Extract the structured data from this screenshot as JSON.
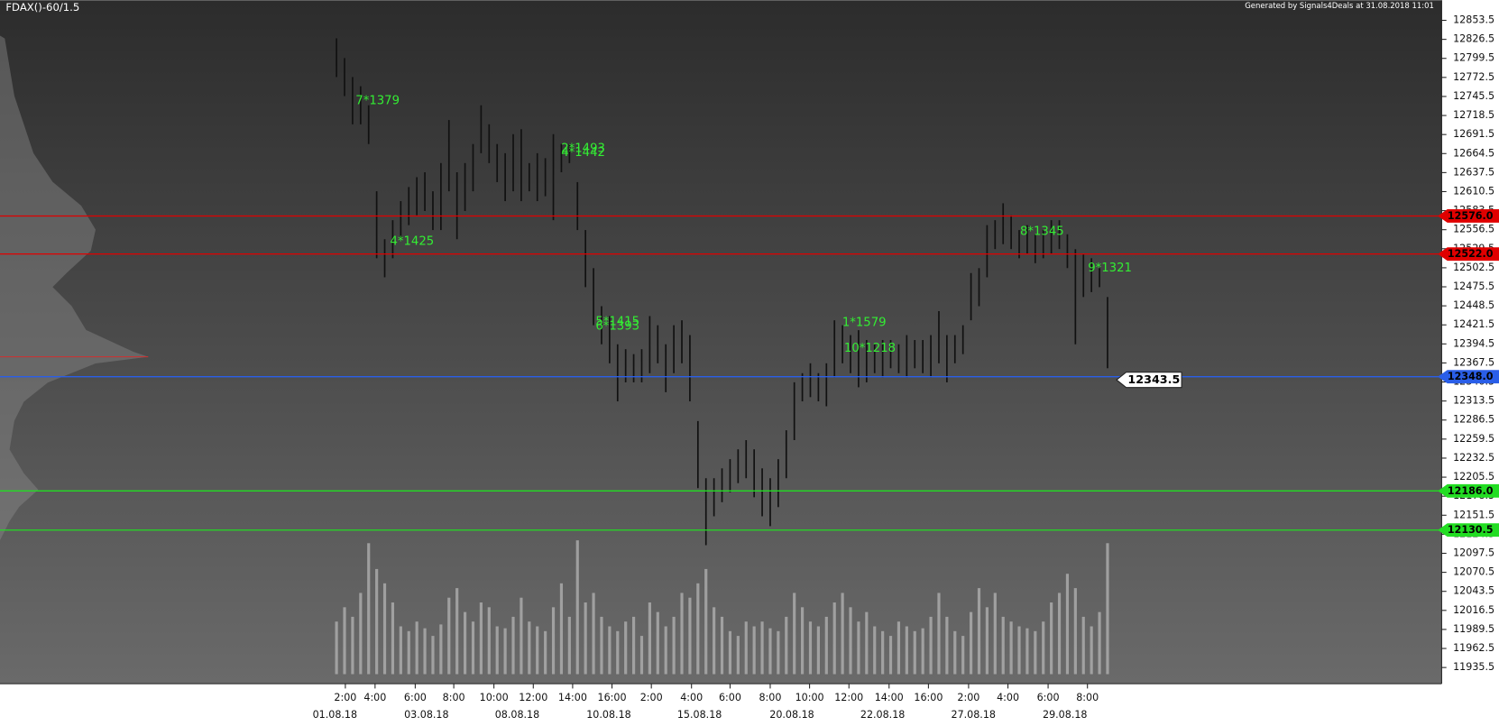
{
  "chart_data": {
    "type": "hilo",
    "title": "FDAX()-60/1.5",
    "subtitle": "Generated by Signals4Deals at 31.08.2018 11:01",
    "color": "#111111",
    "high": [
      12828,
      12800,
      12773,
      12760,
      12733,
      12611,
      12543,
      12570,
      12597,
      12617,
      12631,
      12638,
      12611,
      12651,
      12712,
      12638,
      12651,
      12678,
      12733,
      12706,
      12678,
      12665,
      12692,
      12699,
      12651,
      12665,
      12658,
      12692,
      12678,
      12678,
      12624,
      12556,
      12502,
      12448,
      12434,
      12394,
      12387,
      12380,
      12387,
      12434,
      12421,
      12394,
      12421,
      12428,
      12407,
      12285,
      12204,
      12204,
      12218,
      12231,
      12245,
      12258,
      12245,
      12218,
      12204,
      12231,
      12272,
      12340,
      12353,
      12367,
      12353,
      12367,
      12428,
      12421,
      12407,
      12414,
      12400,
      12394,
      12400,
      12400,
      12394,
      12407,
      12400,
      12400,
      12407,
      12441,
      12407,
      12407,
      12421,
      12495,
      12502,
      12563,
      12570,
      12594,
      12577,
      12556,
      12563,
      12550,
      12556,
      12570,
      12570,
      12550,
      12529,
      12522,
      12516,
      12502,
      12461
    ],
    "low": [
      12773,
      12746,
      12706,
      12706,
      12678,
      12516,
      12489,
      12516,
      12543,
      12563,
      12577,
      12583,
      12556,
      12556,
      12611,
      12543,
      12583,
      12611,
      12665,
      12651,
      12624,
      12597,
      12611,
      12597,
      12611,
      12597,
      12604,
      12570,
      12638,
      12651,
      12556,
      12475,
      12421,
      12394,
      12367,
      12313,
      12340,
      12340,
      12340,
      12353,
      12367,
      12326,
      12353,
      12367,
      12313,
      12190,
      12109,
      12150,
      12170,
      12184,
      12197,
      12204,
      12177,
      12150,
      12136,
      12163,
      12204,
      12258,
      12313,
      12319,
      12313,
      12306,
      12347,
      12367,
      12353,
      12333,
      12340,
      12353,
      12347,
      12360,
      12353,
      12347,
      12360,
      12353,
      12347,
      12367,
      12340,
      12367,
      12380,
      12428,
      12448,
      12489,
      12529,
      12536,
      12529,
      12516,
      12522,
      12509,
      12516,
      12522,
      12529,
      12502,
      12394,
      12461,
      12468,
      12475,
      12360
    ],
    "volume": {
      "color": "#b4b4b4",
      "lim": [
        0,
        150
      ],
      "values": [
        55,
        70,
        60,
        85,
        137,
        110,
        95,
        75,
        50,
        45,
        55,
        48,
        40,
        52,
        80,
        90,
        65,
        55,
        75,
        70,
        50,
        48,
        60,
        80,
        55,
        50,
        45,
        70,
        95,
        60,
        140,
        75,
        85,
        60,
        50,
        45,
        55,
        60,
        40,
        75,
        65,
        50,
        60,
        85,
        80,
        95,
        110,
        70,
        60,
        45,
        40,
        55,
        50,
        55,
        48,
        45,
        60,
        85,
        70,
        55,
        50,
        60,
        75,
        85,
        70,
        55,
        65,
        50,
        45,
        40,
        55,
        50,
        45,
        48,
        60,
        85,
        60,
        45,
        40,
        65,
        90,
        70,
        85,
        60,
        55,
        50,
        48,
        45,
        55,
        75,
        85,
        105,
        90,
        60,
        50,
        65,
        137
      ]
    },
    "ylim": [
      11912.5,
      12882
    ],
    "yticks": [
      11935.5,
      11962.5,
      11989.5,
      12016.5,
      12043.5,
      12070.5,
      12097.5,
      12124.5,
      12151.5,
      12178.5,
      12205.5,
      12232.5,
      12259.5,
      12286.5,
      12313.5,
      12340.5,
      12367.5,
      12394.5,
      12421.5,
      12448.5,
      12475.5,
      12502.5,
      12529.5,
      12556.5,
      12583.5,
      12610.5,
      12637.5,
      12664.5,
      12691.5,
      12718.5,
      12745.5,
      12772.5,
      12799.5,
      12826.5,
      12853.5
    ],
    "xlim": [
      -41.9,
      137.6
    ],
    "xticks": [
      {
        "value": 1.1,
        "label": "2:00"
      },
      {
        "value": 4.8,
        "label": "4:00"
      },
      {
        "value": 9.8,
        "label": "6:00"
      },
      {
        "value": 14.6,
        "label": "8:00"
      },
      {
        "value": 19.6,
        "label": "10:00"
      },
      {
        "value": 24.5,
        "label": "12:00"
      },
      {
        "value": 29.4,
        "label": "14:00"
      },
      {
        "value": 34.3,
        "label": "16:00"
      },
      {
        "value": 39.2,
        "label": "2:00"
      },
      {
        "value": 44.2,
        "label": "4:00"
      },
      {
        "value": 49.0,
        "label": "6:00"
      },
      {
        "value": 54.0,
        "label": "8:00"
      },
      {
        "value": 58.9,
        "label": "10:00"
      },
      {
        "value": 63.8,
        "label": "12:00"
      },
      {
        "value": 68.8,
        "label": "14:00"
      },
      {
        "value": 73.7,
        "label": "16:00"
      },
      {
        "value": 78.7,
        "label": "2:00"
      },
      {
        "value": 83.6,
        "label": "4:00"
      },
      {
        "value": 88.6,
        "label": "6:00"
      },
      {
        "value": 93.5,
        "label": "8:00"
      }
    ],
    "xticks2": [
      {
        "value": -0.2,
        "label": "01.08.18"
      },
      {
        "value": 11.2,
        "label": "03.08.18"
      },
      {
        "value": 22.5,
        "label": "08.08.18"
      },
      {
        "value": 33.9,
        "label": "10.08.18"
      },
      {
        "value": 45.2,
        "label": "15.08.18"
      },
      {
        "value": 56.7,
        "label": "20.08.18"
      },
      {
        "value": 68.0,
        "label": "22.08.18"
      },
      {
        "value": 79.3,
        "label": "27.08.18"
      },
      {
        "value": 90.7,
        "label": "29.08.18"
      }
    ],
    "levels": [
      {
        "value": 12576,
        "label": "12576.0",
        "color": "#e00000"
      },
      {
        "value": 12522,
        "label": "12522.0",
        "color": "#e00000"
      },
      {
        "value": 12348,
        "label": "12348.0",
        "color": "#2a5ee8"
      },
      {
        "value": 12186,
        "label": "12186.0",
        "color": "#22dd22"
      },
      {
        "value": 12130.5,
        "label": "12130.5",
        "color": "#22dd22"
      }
    ],
    "last": 12343.5,
    "annotation_color": "#33ee33",
    "annotations": [
      "7*1379",
      "4*1425",
      "2*1493",
      "4*1442",
      "5*1415",
      "6*1393",
      "1*1579",
      "10*1218",
      "8*1345",
      "9*1321"
    ]
  }
}
